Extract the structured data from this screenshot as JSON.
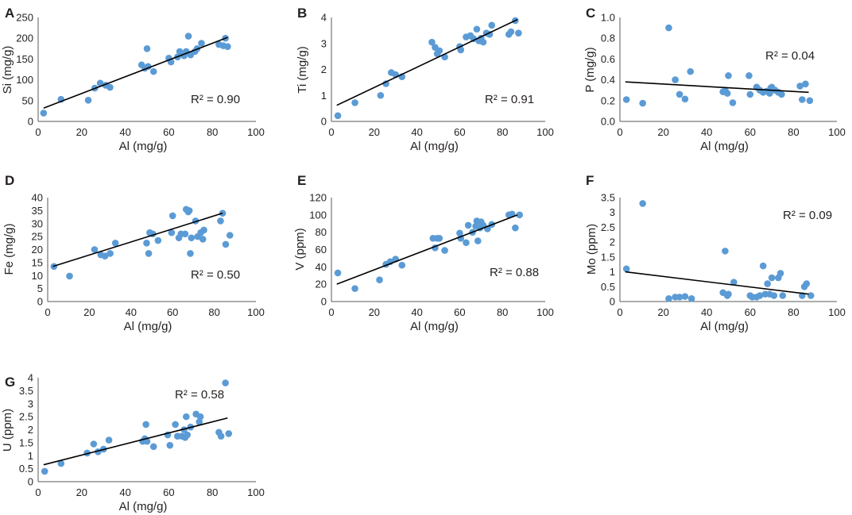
{
  "chart_data": [
    {
      "panel": "A",
      "type": "scatter",
      "xlabel": "Al (mg/g)",
      "ylabel": "Si (mg/g)",
      "xlim": [
        0,
        100
      ],
      "ylim": [
        0,
        250
      ],
      "xticks": [
        0,
        20,
        40,
        60,
        80,
        100
      ],
      "yticks": [
        0,
        50,
        100,
        150,
        200,
        250
      ],
      "r2_label": "R² = 0.90",
      "trendline": [
        [
          2.5,
          32
        ],
        [
          87,
          202
        ]
      ],
      "points": [
        [
          2.5,
          20
        ],
        [
          10.5,
          53
        ],
        [
          23,
          51
        ],
        [
          26,
          80
        ],
        [
          28.5,
          92
        ],
        [
          31,
          87
        ],
        [
          33,
          82
        ],
        [
          47.5,
          136
        ],
        [
          49,
          128
        ],
        [
          50,
          175
        ],
        [
          50.5,
          132
        ],
        [
          53,
          120
        ],
        [
          60,
          152
        ],
        [
          61,
          143
        ],
        [
          64,
          155
        ],
        [
          65,
          168
        ],
        [
          67,
          158
        ],
        [
          68,
          168
        ],
        [
          69,
          205
        ],
        [
          70,
          160
        ],
        [
          72,
          168
        ],
        [
          73,
          175
        ],
        [
          75,
          188
        ],
        [
          83,
          185
        ],
        [
          85,
          182
        ],
        [
          86,
          200
        ],
        [
          87,
          180
        ]
      ]
    },
    {
      "panel": "B",
      "type": "scatter",
      "xlabel": "Al (mg/g)",
      "ylabel": "Ti (mg/g)",
      "xlim": [
        0,
        100
      ],
      "ylim": [
        0,
        4
      ],
      "xticks": [
        0,
        20,
        40,
        60,
        80,
        100
      ],
      "yticks": [
        0,
        1,
        2,
        3,
        4
      ],
      "r2_label": "R² = 0.91",
      "trendline": [
        [
          2.5,
          0.62
        ],
        [
          87,
          3.92
        ]
      ],
      "points": [
        [
          3,
          0.22
        ],
        [
          11,
          0.72
        ],
        [
          23,
          1.0
        ],
        [
          25.5,
          1.45
        ],
        [
          28,
          1.88
        ],
        [
          30,
          1.8
        ],
        [
          33,
          1.72
        ],
        [
          47,
          3.05
        ],
        [
          48.5,
          2.85
        ],
        [
          49.5,
          2.6
        ],
        [
          50.5,
          2.72
        ],
        [
          53,
          2.48
        ],
        [
          60,
          2.88
        ],
        [
          60.5,
          2.75
        ],
        [
          63,
          3.25
        ],
        [
          65,
          3.3
        ],
        [
          66.5,
          3.18
        ],
        [
          68,
          3.55
        ],
        [
          69,
          3.1
        ],
        [
          70,
          3.2
        ],
        [
          71,
          3.05
        ],
        [
          72.5,
          3.4
        ],
        [
          74,
          3.35
        ],
        [
          75,
          3.7
        ],
        [
          83,
          3.35
        ],
        [
          84,
          3.45
        ],
        [
          86,
          3.88
        ],
        [
          87.5,
          3.4
        ]
      ]
    },
    {
      "panel": "C",
      "type": "scatter",
      "xlabel": "Al (mg/g)",
      "ylabel": "P (mg/g)",
      "xlim": [
        0,
        100
      ],
      "ylim": [
        0.0,
        1.0
      ],
      "xticks": [
        0,
        20,
        40,
        60,
        80,
        100
      ],
      "yticks": [
        0.0,
        0.2,
        0.4,
        0.6,
        0.8,
        1.0
      ],
      "ytick_labels": [
        "0.0",
        "0.2",
        "0.4",
        "0.6",
        "0.8",
        "1.0"
      ],
      "r2_label": "R² = 0.04",
      "trendline": [
        [
          2.5,
          0.38
        ],
        [
          87,
          0.28
        ]
      ],
      "points": [
        [
          3,
          0.21
        ],
        [
          10.5,
          0.175
        ],
        [
          22.5,
          0.9
        ],
        [
          25.5,
          0.4
        ],
        [
          27.5,
          0.26
        ],
        [
          30,
          0.215
        ],
        [
          32.5,
          0.48
        ],
        [
          47.5,
          0.285
        ],
        [
          48.5,
          0.3
        ],
        [
          49.5,
          0.27
        ],
        [
          50,
          0.44
        ],
        [
          52,
          0.18
        ],
        [
          59.5,
          0.44
        ],
        [
          60,
          0.26
        ],
        [
          63,
          0.33
        ],
        [
          64.5,
          0.3
        ],
        [
          66,
          0.28
        ],
        [
          67.5,
          0.29
        ],
        [
          69,
          0.27
        ],
        [
          69.5,
          0.32
        ],
        [
          70,
          0.33
        ],
        [
          71.5,
          0.3
        ],
        [
          73,
          0.28
        ],
        [
          74.5,
          0.26
        ],
        [
          83,
          0.34
        ],
        [
          84,
          0.21
        ],
        [
          85.5,
          0.36
        ],
        [
          87.5,
          0.2
        ]
      ]
    },
    {
      "panel": "D",
      "type": "scatter",
      "xlabel": "Al (mg/g)",
      "ylabel": "Fe (mg/g)",
      "xlim": [
        0,
        100
      ],
      "ylim": [
        0,
        40
      ],
      "xticks": [
        0,
        20,
        40,
        60,
        80,
        100
      ],
      "yticks": [
        0,
        5,
        10,
        15,
        20,
        25,
        30,
        35,
        40
      ],
      "r2_label": "R² = 0.50",
      "trendline": [
        [
          2.5,
          13.5
        ],
        [
          84,
          34
        ]
      ],
      "points": [
        [
          3,
          13.5
        ],
        [
          10.5,
          9.8
        ],
        [
          22.5,
          20
        ],
        [
          25.5,
          18
        ],
        [
          27.5,
          17.5
        ],
        [
          30,
          18.5
        ],
        [
          32.5,
          22.5
        ],
        [
          47.5,
          22.5
        ],
        [
          48.5,
          18.5
        ],
        [
          49,
          26.5
        ],
        [
          50.5,
          26
        ],
        [
          53,
          23.5
        ],
        [
          59.5,
          26.5
        ],
        [
          60,
          33
        ],
        [
          63,
          24.5
        ],
        [
          64,
          26
        ],
        [
          66,
          26
        ],
        [
          66.5,
          35.5
        ],
        [
          67.5,
          34.5
        ],
        [
          68,
          35
        ],
        [
          68.5,
          18.5
        ],
        [
          69,
          24.5
        ],
        [
          71,
          31
        ],
        [
          72,
          25
        ],
        [
          73.5,
          26.5
        ],
        [
          74.5,
          24
        ],
        [
          75,
          27.5
        ],
        [
          83,
          31
        ],
        [
          84,
          34
        ],
        [
          85.5,
          22
        ],
        [
          87.5,
          25.5
        ]
      ]
    },
    {
      "panel": "E",
      "type": "scatter",
      "xlabel": "Al (mg/g)",
      "ylabel": "V (ppm)",
      "xlim": [
        0,
        100
      ],
      "ylim": [
        0,
        120
      ],
      "xticks": [
        0,
        20,
        40,
        60,
        80,
        100
      ],
      "yticks": [
        0,
        20,
        40,
        60,
        80,
        100,
        120
      ],
      "r2_label": "R² = 0.88",
      "trendline": [
        [
          2.5,
          20
        ],
        [
          87,
          100
        ]
      ],
      "points": [
        [
          3,
          33
        ],
        [
          11,
          15
        ],
        [
          22.5,
          25
        ],
        [
          25.5,
          43
        ],
        [
          27.5,
          46
        ],
        [
          30,
          49
        ],
        [
          33,
          42
        ],
        [
          47.5,
          73
        ],
        [
          48.5,
          62
        ],
        [
          49.5,
          73
        ],
        [
          50.5,
          73
        ],
        [
          53,
          59
        ],
        [
          60,
          79
        ],
        [
          60.5,
          73
        ],
        [
          63,
          68
        ],
        [
          64,
          88
        ],
        [
          66,
          80
        ],
        [
          67.5,
          87
        ],
        [
          68,
          93
        ],
        [
          68.5,
          70
        ],
        [
          69.5,
          85
        ],
        [
          70,
          92
        ],
        [
          71,
          88
        ],
        [
          73,
          84
        ],
        [
          75,
          89
        ],
        [
          83,
          100
        ],
        [
          84.5,
          101
        ],
        [
          86,
          85
        ],
        [
          88,
          100
        ]
      ]
    },
    {
      "panel": "F",
      "type": "scatter",
      "xlabel": "Al (mg/g)",
      "ylabel": "Mo (ppm)",
      "xlim": [
        0,
        100
      ],
      "ylim": [
        0,
        3.5
      ],
      "xticks": [
        0,
        20,
        40,
        60,
        80,
        100
      ],
      "yticks": [
        0,
        0.5,
        1,
        1.5,
        2,
        2.5,
        3,
        3.5
      ],
      "r2_label": "R² = 0.09",
      "trendline": [
        [
          2.5,
          1.0
        ],
        [
          87,
          0.25
        ]
      ],
      "points": [
        [
          3,
          1.1
        ],
        [
          10.5,
          3.3
        ],
        [
          22.5,
          0.1
        ],
        [
          25.5,
          0.15
        ],
        [
          27.5,
          0.15
        ],
        [
          30,
          0.17
        ],
        [
          33,
          0.1
        ],
        [
          47.5,
          0.3
        ],
        [
          48.5,
          1.7
        ],
        [
          49.5,
          0.2
        ],
        [
          50,
          0.25
        ],
        [
          52.5,
          0.65
        ],
        [
          60,
          0.2
        ],
        [
          61,
          0.15
        ],
        [
          63,
          0.15
        ],
        [
          64.5,
          0.2
        ],
        [
          66,
          1.2
        ],
        [
          67,
          0.25
        ],
        [
          68,
          0.6
        ],
        [
          69,
          0.25
        ],
        [
          70,
          0.8
        ],
        [
          71,
          0.2
        ],
        [
          73,
          0.8
        ],
        [
          74,
          0.95
        ],
        [
          75,
          0.2
        ],
        [
          84,
          0.2
        ],
        [
          85,
          0.5
        ],
        [
          86,
          0.6
        ],
        [
          88,
          0.2
        ]
      ]
    },
    {
      "panel": "G",
      "type": "scatter",
      "xlabel": "Al (mg/g)",
      "ylabel": "U (ppm)",
      "xlim": [
        0,
        100
      ],
      "ylim": [
        0,
        4
      ],
      "xticks": [
        0,
        20,
        40,
        60,
        80,
        100
      ],
      "yticks": [
        0,
        0.5,
        1,
        1.5,
        2,
        2.5,
        3,
        3.5,
        4
      ],
      "r2_label": "R² = 0.58",
      "trendline": [
        [
          2.5,
          0.65
        ],
        [
          87,
          2.45
        ]
      ],
      "points": [
        [
          3,
          0.4
        ],
        [
          10.5,
          0.7
        ],
        [
          22.5,
          1.1
        ],
        [
          25.5,
          1.45
        ],
        [
          27.5,
          1.15
        ],
        [
          30,
          1.25
        ],
        [
          32.5,
          1.6
        ],
        [
          48,
          1.55
        ],
        [
          49,
          1.65
        ],
        [
          49.5,
          2.2
        ],
        [
          50,
          1.55
        ],
        [
          53,
          1.35
        ],
        [
          59.5,
          1.8
        ],
        [
          60.5,
          1.4
        ],
        [
          63,
          2.2
        ],
        [
          64,
          1.75
        ],
        [
          66,
          1.75
        ],
        [
          67,
          2.0
        ],
        [
          67.5,
          1.7
        ],
        [
          68,
          2.5
        ],
        [
          68.5,
          1.8
        ],
        [
          70,
          2.1
        ],
        [
          72.5,
          2.6
        ],
        [
          74,
          2.3
        ],
        [
          74.5,
          2.5
        ],
        [
          83,
          1.9
        ],
        [
          84,
          1.75
        ],
        [
          86,
          3.8
        ],
        [
          87.5,
          1.85
        ]
      ]
    }
  ]
}
